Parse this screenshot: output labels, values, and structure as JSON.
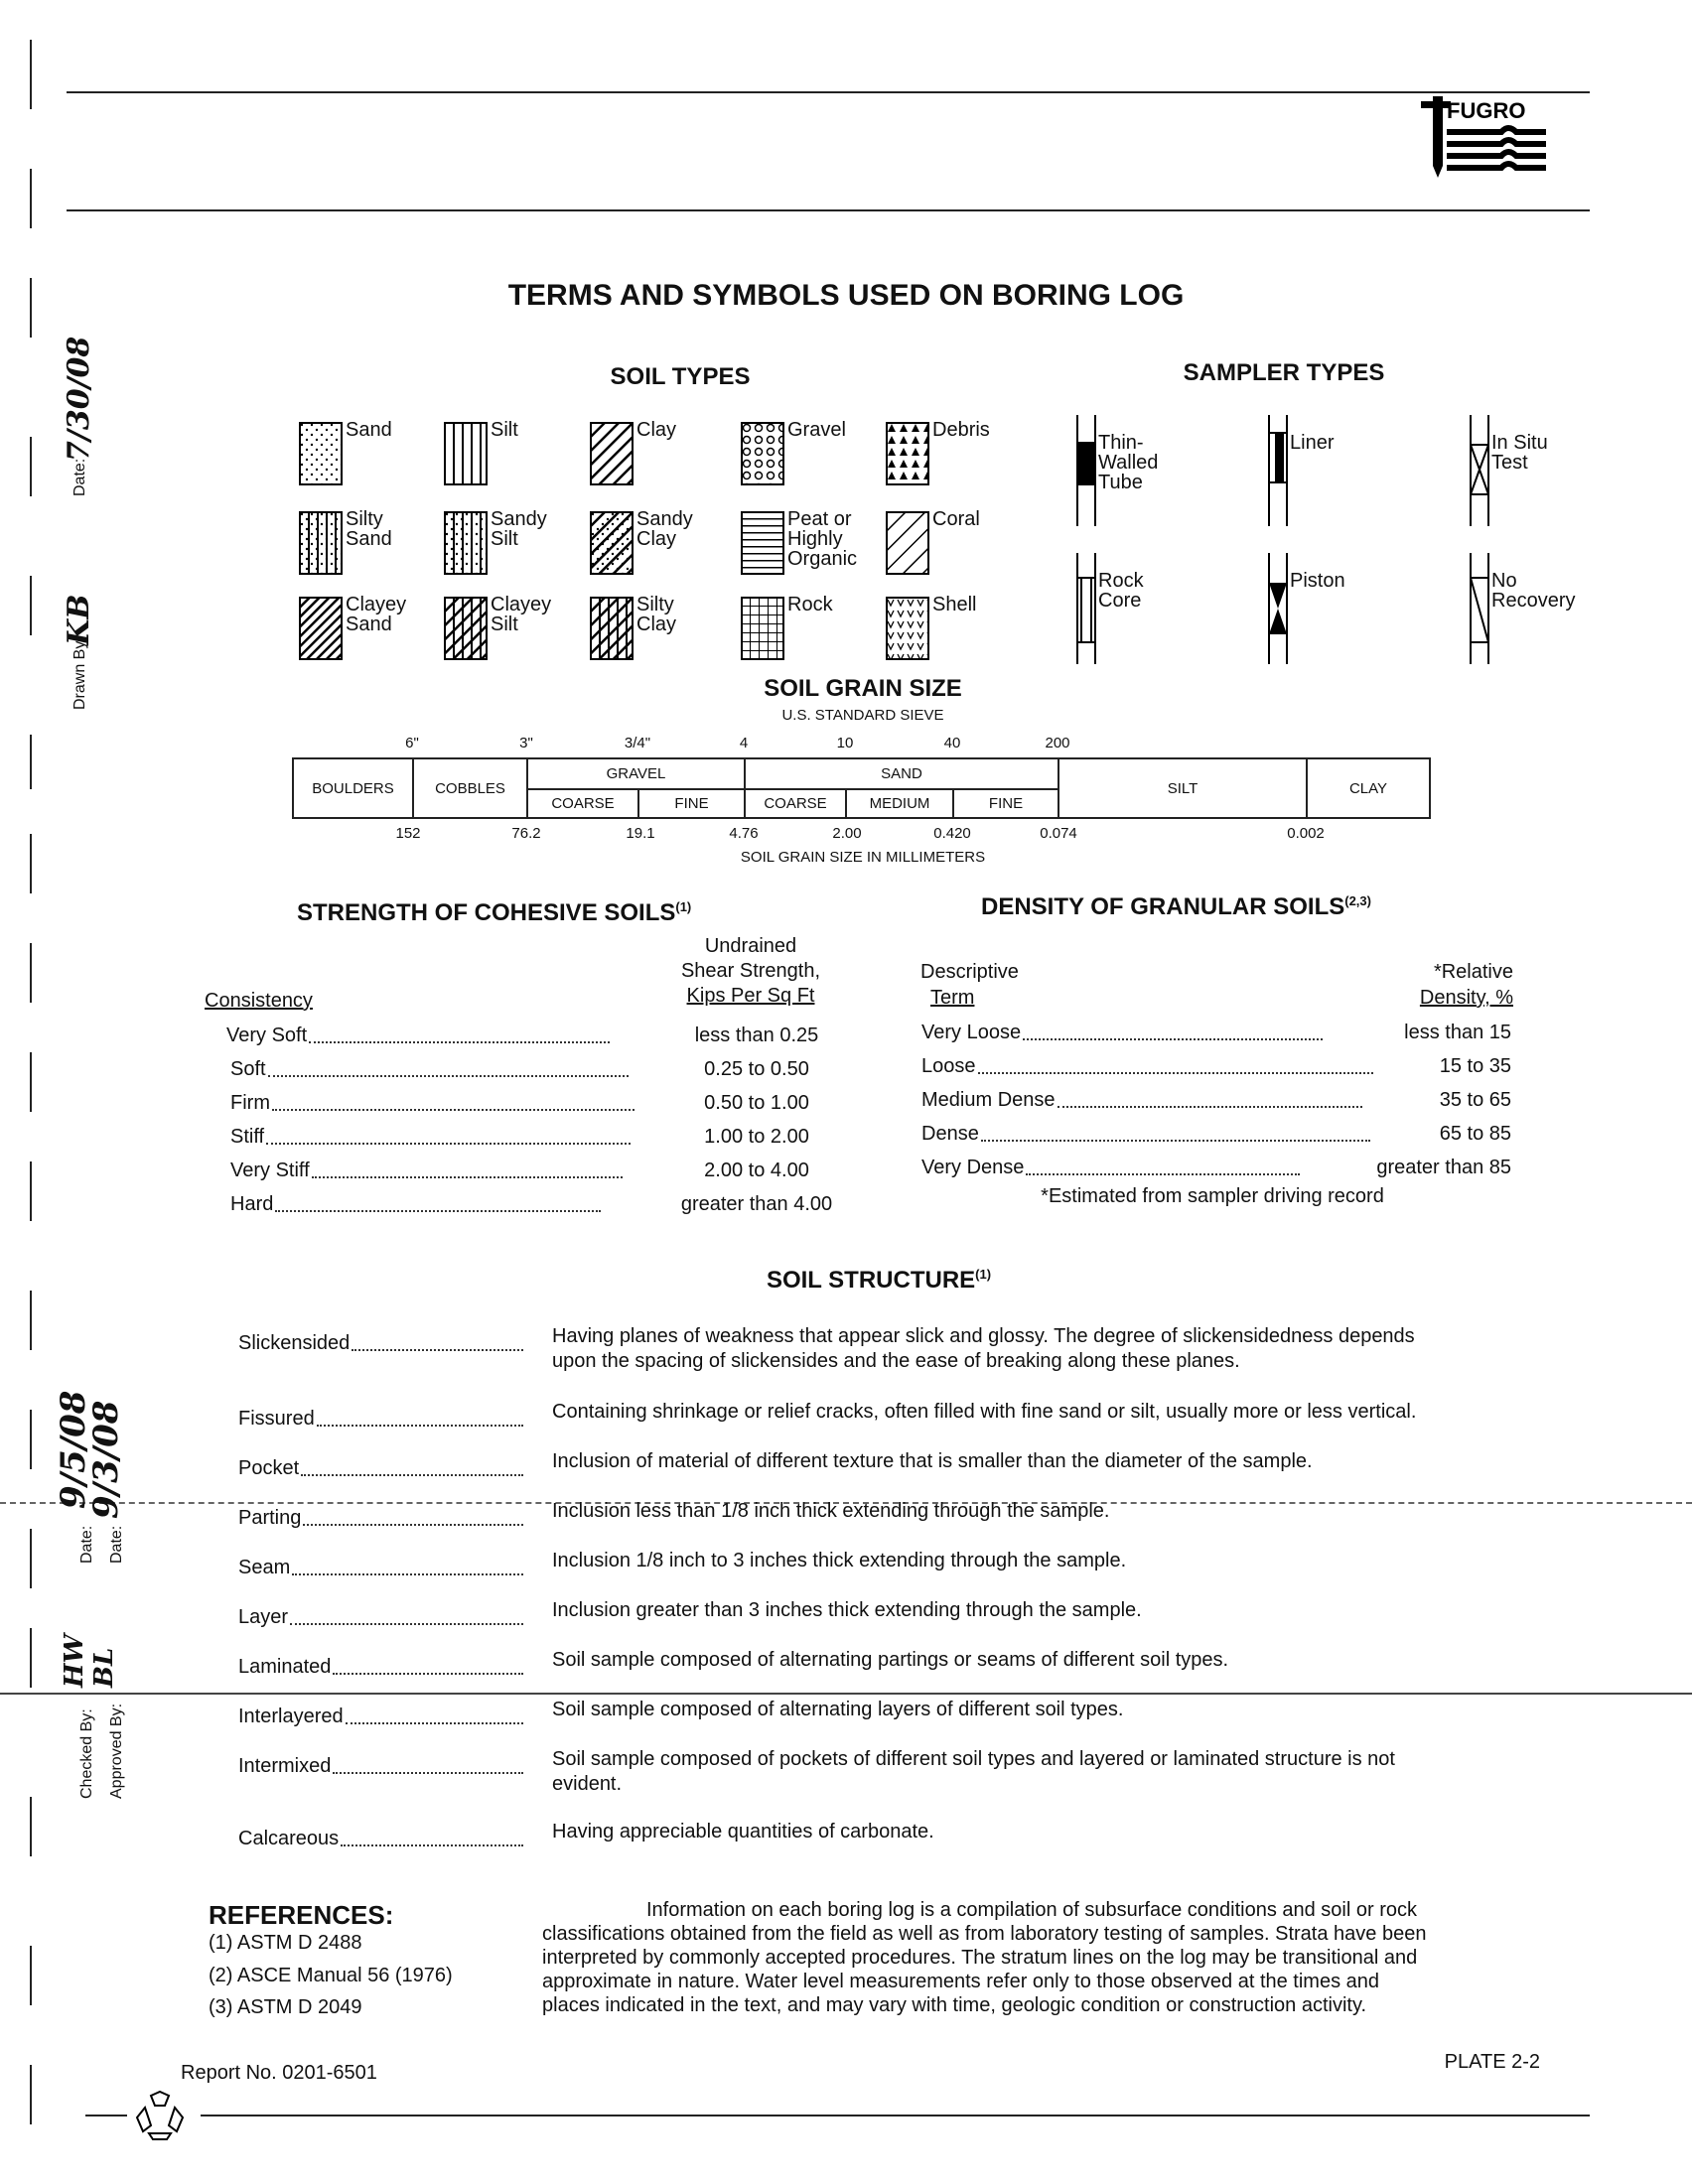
{
  "logo": {
    "text": "FUGRO"
  },
  "title": "TERMS AND SYMBOLS USED ON BORING LOG",
  "soil_types": {
    "heading": "SOIL TYPES",
    "items": [
      {
        "label": "Sand",
        "pattern": "dots"
      },
      {
        "label": "Silt",
        "pattern": "vlines"
      },
      {
        "label": "Clay",
        "pattern": "diag"
      },
      {
        "label": "Gravel",
        "pattern": "circles"
      },
      {
        "label": "Debris",
        "pattern": "triangles"
      },
      {
        "label": "Silty Sand",
        "pattern": "vlines+dots"
      },
      {
        "label": "Sandy Silt",
        "pattern": "vlines+dots"
      },
      {
        "label": "Sandy Clay",
        "pattern": "diag+dots"
      },
      {
        "label": "Peat or Highly Organic",
        "pattern": "hlines"
      },
      {
        "label": "Coral",
        "pattern": "diag-wide"
      },
      {
        "label": "Clayey Sand",
        "pattern": "diag-dense"
      },
      {
        "label": "Clayey Silt",
        "pattern": "vlines+diag"
      },
      {
        "label": "Silty Clay",
        "pattern": "diag+vlines"
      },
      {
        "label": "Rock",
        "pattern": "grid"
      },
      {
        "label": "Shell",
        "pattern": "vees"
      }
    ]
  },
  "sampler_types": {
    "heading": "SAMPLER TYPES",
    "items": [
      {
        "label": "Thin-Walled Tube",
        "symbol": "tube"
      },
      {
        "label": "Liner",
        "symbol": "liner"
      },
      {
        "label": "In Situ Test",
        "symbol": "insitu"
      },
      {
        "label": "Rock Core",
        "symbol": "core"
      },
      {
        "label": "Piston",
        "symbol": "piston"
      },
      {
        "label": "No Recovery",
        "symbol": "norecovery"
      }
    ]
  },
  "grain_size": {
    "heading": "SOIL GRAIN SIZE",
    "subheading": "U.S. STANDARD SIEVE",
    "sieves": [
      "6\"",
      "3\"",
      "3/4\"",
      "4",
      "10",
      "40",
      "200"
    ],
    "classes": {
      "boulders": "BOULDERS",
      "cobbles": "COBBLES",
      "gravel": "GRAVEL",
      "sand": "SAND",
      "silt": "SILT",
      "clay": "CLAY",
      "coarse": "COARSE",
      "fine": "FINE",
      "medium": "MEDIUM"
    },
    "mm": [
      "152",
      "76.2",
      "19.1",
      "4.76",
      "2.00",
      "0.420",
      "0.074",
      "0.002"
    ],
    "caption": "SOIL GRAIN SIZE IN MILLIMETERS"
  },
  "cohesive": {
    "heading": "STRENGTH OF COHESIVE SOILS",
    "heading_sup": "(1)",
    "col1": "Consistency",
    "col2": [
      "Undrained",
      "Shear Strength,",
      "Kips Per Sq Ft"
    ],
    "rows": [
      {
        "term": "Very Soft",
        "value": "less than 0.25"
      },
      {
        "term": "Soft",
        "value": "0.25 to 0.50"
      },
      {
        "term": "Firm",
        "value": "0.50 to 1.00"
      },
      {
        "term": "Stiff",
        "value": "1.00 to 2.00"
      },
      {
        "term": "Very Stiff",
        "value": "2.00 to 4.00"
      },
      {
        "term": "Hard",
        "value": "greater than 4.00"
      }
    ]
  },
  "granular": {
    "heading": "DENSITY OF GRANULAR SOILS",
    "heading_sup": "(2,3)",
    "col1": [
      "Descriptive",
      "Term"
    ],
    "col2": [
      "*Relative",
      "Density, %"
    ],
    "rows": [
      {
        "term": "Very Loose",
        "value": "less than 15"
      },
      {
        "term": "Loose",
        "value": "15 to 35"
      },
      {
        "term": "Medium Dense",
        "value": "35 to 65"
      },
      {
        "term": "Dense",
        "value": "65 to 85"
      },
      {
        "term": "Very Dense",
        "value": "greater than 85"
      }
    ],
    "footnote": "*Estimated from sampler driving record"
  },
  "structure": {
    "heading": "SOIL STRUCTURE",
    "heading_sup": "(1)",
    "rows": [
      {
        "term": "Slickensided",
        "desc": [
          "Having planes of weakness that appear slick and glossy. The degree of slickensidedness depends",
          "upon the spacing of slickensides and the ease of breaking along these planes."
        ]
      },
      {
        "term": "Fissured",
        "desc": [
          "Containing shrinkage or relief cracks, often filled with fine sand or silt, usually more or less vertical."
        ]
      },
      {
        "term": "Pocket",
        "desc": [
          "Inclusion of material of different texture that is smaller than the diameter of the sample."
        ]
      },
      {
        "term": "Parting",
        "desc": [
          "Inclusion less than 1/8 inch thick extending through the sample."
        ]
      },
      {
        "term": "Seam",
        "desc": [
          "Inclusion 1/8 inch to 3 inches thick extending through the sample."
        ]
      },
      {
        "term": "Layer",
        "desc": [
          "Inclusion greater than 3 inches thick extending through the sample."
        ]
      },
      {
        "term": "Laminated",
        "desc": [
          "Soil sample composed of alternating partings or seams of different soil types."
        ]
      },
      {
        "term": "Interlayered",
        "desc": [
          "Soil sample composed of alternating layers of different soil types."
        ]
      },
      {
        "term": "Intermixed",
        "desc": [
          "Soil sample composed of pockets of different soil types and layered or laminated structure is not",
          "evident."
        ]
      },
      {
        "term": "Calcareous",
        "desc": [
          "Having appreciable quantities of carbonate."
        ]
      }
    ]
  },
  "references": {
    "heading": "REFERENCES:",
    "items": [
      "(1) ASTM D 2488",
      "(2) ASCE Manual 56 (1976)",
      "(3) ASTM D 2049"
    ]
  },
  "disclaimer": [
    "Information on each boring log is a compilation of subsurface conditions and soil or rock",
    "classifications obtained from the field as well as from laboratory testing of samples. Strata have been",
    "interpreted by commonly accepted procedures. The stratum lines on the log may be transitional and",
    "approximate in nature. Water level measurements refer only to those observed at the times and",
    "places indicated in the text, and may vary with time, geologic condition or construction activity."
  ],
  "footer": {
    "report_no": "Report No. 0201-6501",
    "plate": "PLATE 2-2"
  },
  "margin": {
    "date_label": "Date:",
    "drawn_by_label": "Drawn By:",
    "checked_by_label": "Checked By:",
    "approved_by_label": "Approved By:",
    "drawn_date": "7/30/08",
    "drawn_by": "KB",
    "checked_date": "9/5/08",
    "approved_date": "9/3/08",
    "checked_by": "HW",
    "approved_by": "BL"
  }
}
